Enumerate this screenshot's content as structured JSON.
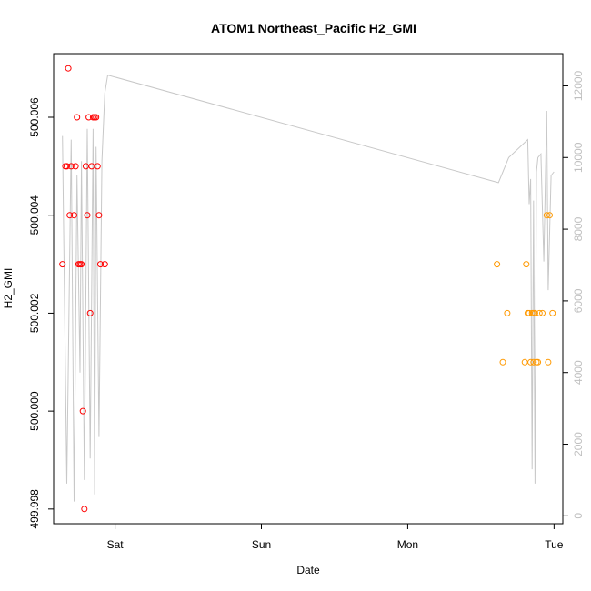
{
  "chart_data": {
    "type": "scatter",
    "title": "ATOM1 Northeast_Pacific H2_GMI",
    "xlabel": "Date",
    "ylabel": "H2_GMI",
    "x_ticks": [
      "Sat",
      "Sun",
      "Mon",
      "Tue"
    ],
    "x_tick_values": [
      1,
      2,
      3,
      4
    ],
    "xlim": [
      0.58,
      4.06
    ],
    "ylim": [
      499.9977,
      500.0073
    ],
    "y_ticks": [
      499.998,
      500.0,
      500.002,
      500.004,
      500.006
    ],
    "y_tick_labels": [
      "499.998",
      "500.000",
      "500.002",
      "500.004",
      "500.006"
    ],
    "y2lim": [
      -220,
      12900
    ],
    "y2_ticks": [
      0,
      2000,
      4000,
      6000,
      8000,
      10000,
      12000
    ],
    "y2_tick_labels": [
      "0",
      "2000",
      "4000",
      "6000",
      "8000",
      "10000",
      "12000"
    ],
    "grid": false,
    "legend": "none",
    "series": [
      {
        "color": "#ff0000",
        "x": [
          0.64,
          0.66,
          0.67,
          0.68,
          0.69,
          0.7,
          0.72,
          0.73,
          0.74,
          0.75,
          0.76,
          0.77,
          0.78,
          0.79,
          0.8,
          0.81,
          0.82,
          0.83,
          0.84,
          0.85,
          0.86,
          0.87,
          0.88,
          0.89,
          0.9,
          0.93
        ],
        "y": [
          500.003,
          500.005,
          500.005,
          500.007,
          500.004,
          500.005,
          500.004,
          500.005,
          500.006,
          500.003,
          500.003,
          500.003,
          500.0,
          499.998,
          500.005,
          500.004,
          500.006,
          500.002,
          500.005,
          500.006,
          500.006,
          500.006,
          500.005,
          500.004,
          500.003,
          500.003
        ]
      },
      {
        "color": "#ff9900",
        "x": [
          3.61,
          3.65,
          3.68,
          3.8,
          3.81,
          3.82,
          3.83,
          3.84,
          3.85,
          3.86,
          3.86,
          3.87,
          3.88,
          3.89,
          3.9,
          3.92,
          3.95,
          3.96,
          3.97,
          3.99
        ],
        "y": [
          500.003,
          500.001,
          500.002,
          500.001,
          500.003,
          500.002,
          500.002,
          500.001,
          500.002,
          500.002,
          500.001,
          500.002,
          500.001,
          500.001,
          500.002,
          500.002,
          500.004,
          500.001,
          500.004,
          500.002
        ]
      }
    ],
    "secondary_series": {
      "axis": "right",
      "color": "#c8c8c8",
      "type": "line",
      "x": [
        0.64,
        0.67,
        0.7,
        0.72,
        0.74,
        0.76,
        0.77,
        0.79,
        0.81,
        0.83,
        0.85,
        0.86,
        0.87,
        0.89,
        0.91,
        0.93,
        0.95,
        3.62,
        3.69,
        3.82,
        3.83,
        3.84,
        3.85,
        3.86,
        3.87,
        3.88,
        3.89,
        3.91,
        3.93,
        3.95,
        3.96,
        3.98,
        4.0
      ],
      "y": [
        10600,
        900,
        10500,
        400,
        9500,
        4000,
        9900,
        1000,
        10800,
        1600,
        10800,
        600,
        10300,
        2200,
        9900,
        11800,
        12300,
        9300,
        10000,
        10500,
        8700,
        9400,
        1300,
        8800,
        900,
        9600,
        10000,
        10100,
        7100,
        11300,
        6300,
        9500,
        9600
      ]
    }
  }
}
